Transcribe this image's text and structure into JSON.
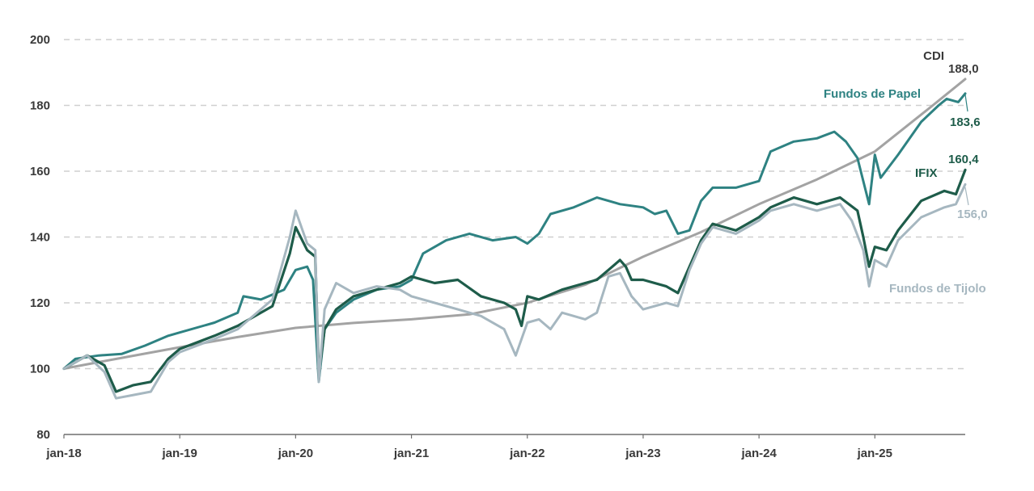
{
  "chart_data": {
    "type": "line",
    "title": "",
    "xlabel": "",
    "ylabel": "",
    "ylim": [
      80,
      200
    ],
    "yticks": [
      80,
      100,
      120,
      140,
      160,
      180,
      200
    ],
    "grid": true,
    "x_tick_labels": [
      "jan-18",
      "jan-19",
      "jan-20",
      "jan-21",
      "jan-22",
      "jan-23",
      "jan-24",
      "jan-25"
    ],
    "x_start_year": 2018,
    "x_end": 2025.78,
    "series": [
      {
        "name": "CDI",
        "color": "#a3a3a3",
        "label_color": "#3a3a3a",
        "end_value_text": "188,0",
        "points": [
          [
            2018.0,
            100
          ],
          [
            2018.5,
            103.3
          ],
          [
            2019.0,
            106.5
          ],
          [
            2019.5,
            109.6
          ],
          [
            2020.0,
            112.4
          ],
          [
            2020.5,
            113.9
          ],
          [
            2021.0,
            115
          ],
          [
            2021.5,
            116.5
          ],
          [
            2022.0,
            120
          ],
          [
            2022.5,
            125.5
          ],
          [
            2023.0,
            134
          ],
          [
            2023.5,
            141.5
          ],
          [
            2024.0,
            150
          ],
          [
            2024.5,
            157.5
          ],
          [
            2025.0,
            166
          ],
          [
            2025.5,
            180
          ],
          [
            2025.78,
            188
          ]
        ]
      },
      {
        "name": "Fundos de Papel",
        "color": "#2e8282",
        "label_color": "#2e8282",
        "end_value_text": "183,6",
        "points": [
          [
            2018.0,
            100
          ],
          [
            2018.1,
            103
          ],
          [
            2018.3,
            104
          ],
          [
            2018.5,
            104.5
          ],
          [
            2018.7,
            107
          ],
          [
            2018.9,
            110
          ],
          [
            2019.0,
            111
          ],
          [
            2019.3,
            114
          ],
          [
            2019.5,
            117
          ],
          [
            2019.55,
            122
          ],
          [
            2019.7,
            121
          ],
          [
            2019.9,
            124
          ],
          [
            2020.0,
            130
          ],
          [
            2020.1,
            131
          ],
          [
            2020.15,
            127
          ],
          [
            2020.2,
            96
          ],
          [
            2020.25,
            112
          ],
          [
            2020.35,
            117
          ],
          [
            2020.5,
            121
          ],
          [
            2020.7,
            124
          ],
          [
            2020.9,
            125
          ],
          [
            2021.0,
            127
          ],
          [
            2021.1,
            135
          ],
          [
            2021.3,
            139
          ],
          [
            2021.5,
            141
          ],
          [
            2021.7,
            139
          ],
          [
            2021.9,
            140
          ],
          [
            2022.0,
            138
          ],
          [
            2022.1,
            141
          ],
          [
            2022.2,
            147
          ],
          [
            2022.4,
            149
          ],
          [
            2022.6,
            152
          ],
          [
            2022.8,
            150
          ],
          [
            2023.0,
            149
          ],
          [
            2023.1,
            147
          ],
          [
            2023.2,
            148
          ],
          [
            2023.3,
            141
          ],
          [
            2023.4,
            142
          ],
          [
            2023.5,
            151
          ],
          [
            2023.6,
            155
          ],
          [
            2023.8,
            155
          ],
          [
            2024.0,
            157
          ],
          [
            2024.1,
            166
          ],
          [
            2024.3,
            169
          ],
          [
            2024.5,
            170
          ],
          [
            2024.65,
            172
          ],
          [
            2024.75,
            169
          ],
          [
            2024.85,
            164
          ],
          [
            2024.95,
            150
          ],
          [
            2025.0,
            165
          ],
          [
            2025.05,
            158
          ],
          [
            2025.2,
            165
          ],
          [
            2025.4,
            175
          ],
          [
            2025.55,
            180
          ],
          [
            2025.62,
            182
          ],
          [
            2025.72,
            181
          ],
          [
            2025.78,
            183.6
          ]
        ]
      },
      {
        "name": "IFIX",
        "color": "#1e5c4a",
        "label_color": "#1e5c4a",
        "end_value_text": "160,4",
        "points": [
          [
            2018.0,
            100
          ],
          [
            2018.2,
            104
          ],
          [
            2018.35,
            101
          ],
          [
            2018.45,
            93
          ],
          [
            2018.6,
            95
          ],
          [
            2018.75,
            96
          ],
          [
            2018.9,
            103
          ],
          [
            2019.0,
            106
          ],
          [
            2019.3,
            110
          ],
          [
            2019.5,
            113
          ],
          [
            2019.6,
            115
          ],
          [
            2019.8,
            119
          ],
          [
            2019.95,
            135
          ],
          [
            2020.0,
            143
          ],
          [
            2020.1,
            136
          ],
          [
            2020.17,
            134
          ],
          [
            2020.2,
            98
          ],
          [
            2020.25,
            112
          ],
          [
            2020.35,
            118
          ],
          [
            2020.5,
            122
          ],
          [
            2020.7,
            124
          ],
          [
            2020.9,
            126
          ],
          [
            2021.0,
            128
          ],
          [
            2021.2,
            126
          ],
          [
            2021.4,
            127
          ],
          [
            2021.6,
            122
          ],
          [
            2021.8,
            120
          ],
          [
            2021.9,
            118
          ],
          [
            2021.95,
            113
          ],
          [
            2022.0,
            122
          ],
          [
            2022.1,
            121
          ],
          [
            2022.3,
            124
          ],
          [
            2022.5,
            126
          ],
          [
            2022.6,
            127
          ],
          [
            2022.7,
            130
          ],
          [
            2022.8,
            133
          ],
          [
            2022.85,
            131
          ],
          [
            2022.9,
            127
          ],
          [
            2023.0,
            127
          ],
          [
            2023.2,
            125
          ],
          [
            2023.3,
            123
          ],
          [
            2023.4,
            131
          ],
          [
            2023.5,
            139
          ],
          [
            2023.6,
            144
          ],
          [
            2023.8,
            142
          ],
          [
            2024.0,
            146
          ],
          [
            2024.1,
            149
          ],
          [
            2024.3,
            152
          ],
          [
            2024.5,
            150
          ],
          [
            2024.7,
            152
          ],
          [
            2024.85,
            148
          ],
          [
            2024.9,
            140
          ],
          [
            2024.95,
            131
          ],
          [
            2025.0,
            137
          ],
          [
            2025.1,
            136
          ],
          [
            2025.2,
            142
          ],
          [
            2025.4,
            151
          ],
          [
            2025.6,
            154
          ],
          [
            2025.7,
            153
          ],
          [
            2025.78,
            160.4
          ]
        ]
      },
      {
        "name": "Fundos de Tijolo",
        "color": "#a6b7c0",
        "label_color": "#a6b7c0",
        "end_value_text": "156,0",
        "points": [
          [
            2018.0,
            100
          ],
          [
            2018.2,
            104
          ],
          [
            2018.35,
            99
          ],
          [
            2018.45,
            91
          ],
          [
            2018.6,
            92
          ],
          [
            2018.75,
            93
          ],
          [
            2018.9,
            102
          ],
          [
            2019.0,
            105
          ],
          [
            2019.3,
            109
          ],
          [
            2019.5,
            112
          ],
          [
            2019.6,
            115
          ],
          [
            2019.8,
            121
          ],
          [
            2019.95,
            140
          ],
          [
            2020.0,
            148
          ],
          [
            2020.1,
            138
          ],
          [
            2020.17,
            136
          ],
          [
            2020.2,
            96
          ],
          [
            2020.25,
            118
          ],
          [
            2020.35,
            126
          ],
          [
            2020.5,
            123
          ],
          [
            2020.7,
            125
          ],
          [
            2020.9,
            124
          ],
          [
            2021.0,
            122
          ],
          [
            2021.2,
            120
          ],
          [
            2021.4,
            118
          ],
          [
            2021.6,
            116
          ],
          [
            2021.8,
            112
          ],
          [
            2021.9,
            104
          ],
          [
            2022.0,
            114
          ],
          [
            2022.1,
            115
          ],
          [
            2022.2,
            112
          ],
          [
            2022.3,
            117
          ],
          [
            2022.5,
            115
          ],
          [
            2022.6,
            117
          ],
          [
            2022.7,
            128
          ],
          [
            2022.8,
            129
          ],
          [
            2022.9,
            122
          ],
          [
            2023.0,
            118
          ],
          [
            2023.2,
            120
          ],
          [
            2023.3,
            119
          ],
          [
            2023.4,
            130
          ],
          [
            2023.5,
            138
          ],
          [
            2023.6,
            143
          ],
          [
            2023.8,
            141
          ],
          [
            2024.0,
            145
          ],
          [
            2024.1,
            148
          ],
          [
            2024.3,
            150
          ],
          [
            2024.5,
            148
          ],
          [
            2024.7,
            150
          ],
          [
            2024.8,
            145
          ],
          [
            2024.9,
            136
          ],
          [
            2024.95,
            125
          ],
          [
            2025.0,
            133
          ],
          [
            2025.1,
            131
          ],
          [
            2025.2,
            139
          ],
          [
            2025.4,
            146
          ],
          [
            2025.6,
            149
          ],
          [
            2025.7,
            150
          ],
          [
            2025.78,
            156
          ]
        ]
      }
    ]
  }
}
